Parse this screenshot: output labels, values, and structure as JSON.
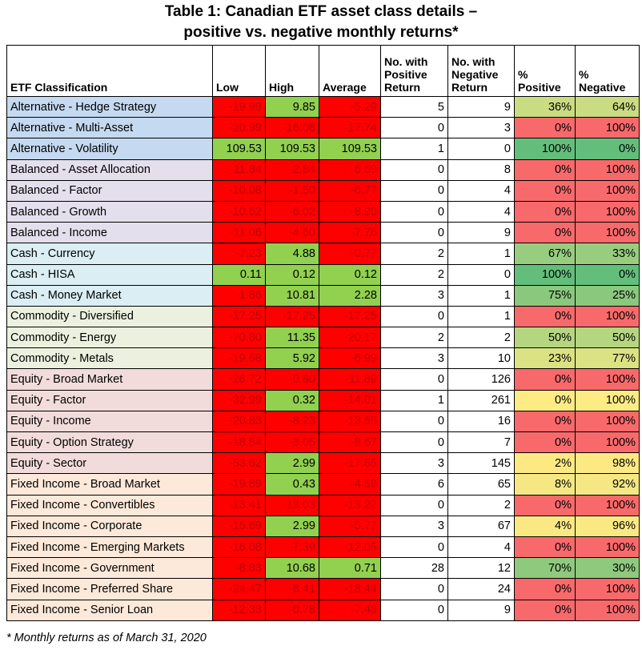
{
  "title_line1": "Table 1: Canadian ETF asset class details –",
  "title_line2": "positive vs. negative monthly returns*",
  "headers": [
    "ETF Classification",
    "Low",
    "High",
    "Average",
    "No. with Positive Return",
    "No. with Negative Return",
    "% Positive",
    "% Negative"
  ],
  "category_colors": {
    "Alternative": "#c5d9f1",
    "Balanced": "#e4dfec",
    "Cash": "#daeef3",
    "Commodity": "#ebf1de",
    "Equity": "#f2dcdb",
    "Fixed Income": "#fde9d9"
  },
  "rows": [
    {
      "name": "Alternative - Hedge Strategy",
      "cat": "Alternative",
      "low": "-19.99",
      "high": "9.85",
      "avg": "-5.29",
      "npos": "5",
      "nneg": "9",
      "ppos": "36%",
      "pneg": "64%",
      "pcolor": "#c9dc81"
    },
    {
      "name": "Alternative - Multi-Asset",
      "cat": "Alternative",
      "low": "-20.99",
      "high": "-16.08",
      "avg": "-17.74",
      "npos": "0",
      "nneg": "3",
      "ppos": "0%",
      "pneg": "100%",
      "pcolor": "#f8696b"
    },
    {
      "name": "Alternative - Volatility",
      "cat": "Alternative",
      "low": "109.53",
      "high": "109.53",
      "avg": "109.53",
      "npos": "1",
      "nneg": "0",
      "ppos": "100%",
      "pneg": "0%",
      "pcolor": "#63be7b"
    },
    {
      "name": "Balanced - Asset Allocation",
      "cat": "Balanced",
      "low": "-11.84",
      "high": "-2.84",
      "avg": "-6.69",
      "npos": "0",
      "nneg": "8",
      "ppos": "0%",
      "pneg": "100%",
      "pcolor": "#f8696b"
    },
    {
      "name": "Balanced - Factor",
      "cat": "Balanced",
      "low": "-10.08",
      "high": "-1.50",
      "avg": "-6.77",
      "npos": "0",
      "nneg": "4",
      "ppos": "0%",
      "pneg": "100%",
      "pcolor": "#f8696b"
    },
    {
      "name": "Balanced - Growth",
      "cat": "Balanced",
      "low": "-10.62",
      "high": "-6.02",
      "avg": "-8.90",
      "npos": "0",
      "nneg": "4",
      "ppos": "0%",
      "pneg": "100%",
      "pcolor": "#f8696b"
    },
    {
      "name": "Balanced - Income",
      "cat": "Balanced",
      "low": "-11.06",
      "high": "-4.60",
      "avg": "-7.76",
      "npos": "0",
      "nneg": "9",
      "ppos": "0%",
      "pneg": "100%",
      "pcolor": "#f8696b"
    },
    {
      "name": "Cash - Currency",
      "cat": "Cash",
      "low": "-7.23",
      "high": "4.88",
      "avg": "-0.77",
      "npos": "2",
      "nneg": "1",
      "ppos": "67%",
      "pneg": "33%",
      "pcolor": "#98cd7f"
    },
    {
      "name": "Cash - HISA",
      "cat": "Cash",
      "low": "0.11",
      "high": "0.12",
      "avg": "0.12",
      "npos": "2",
      "nneg": "0",
      "ppos": "100%",
      "pneg": "0%",
      "pcolor": "#63be7b"
    },
    {
      "name": "Cash - Money Market",
      "cat": "Cash",
      "low": "-1.86",
      "high": "10.81",
      "avg": "2.28",
      "npos": "3",
      "nneg": "1",
      "ppos": "75%",
      "pneg": "25%",
      "pcolor": "#8ac87d"
    },
    {
      "name": "Commodity - Diversified",
      "cat": "Commodity",
      "low": "-17.25",
      "high": "-17.25",
      "avg": "-17.25",
      "npos": "0",
      "nneg": "1",
      "ppos": "0%",
      "pneg": "100%",
      "pcolor": "#f8696b"
    },
    {
      "name": "Commodity - Energy",
      "cat": "Commodity",
      "low": "-70.80",
      "high": "11.35",
      "avg": "-20.17",
      "npos": "2",
      "nneg": "2",
      "ppos": "50%",
      "pneg": "50%",
      "pcolor": "#b5d680"
    },
    {
      "name": "Commodity - Metals",
      "cat": "Commodity",
      "low": "-19.58",
      "high": "5.92",
      "avg": "-6.99",
      "npos": "3",
      "nneg": "10",
      "ppos": "23%",
      "pneg": "77%",
      "pcolor": "#dae283"
    },
    {
      "name": "Equity - Broad Market",
      "cat": "Equity",
      "low": "-26.72",
      "high": "-0.80",
      "avg": "-11.89",
      "npos": "0",
      "nneg": "126",
      "ppos": "0%",
      "pneg": "100%",
      "pcolor": "#f8696b"
    },
    {
      "name": "Equity - Factor",
      "cat": "Equity",
      "low": "-32.99",
      "high": "0.32",
      "avg": "-14.01",
      "npos": "1",
      "nneg": "261",
      "ppos": "0%",
      "pneg": "100%",
      "pcolor": "#ffeb84"
    },
    {
      "name": "Equity - Income",
      "cat": "Equity",
      "low": "-20.83",
      "high": "-8.23",
      "avg": "-13.65",
      "npos": "0",
      "nneg": "16",
      "ppos": "0%",
      "pneg": "100%",
      "pcolor": "#f8696b"
    },
    {
      "name": "Equity - Option Strategy",
      "cat": "Equity",
      "low": "-18.54",
      "high": "-3.05",
      "avg": "-8.67",
      "npos": "0",
      "nneg": "7",
      "ppos": "0%",
      "pneg": "100%",
      "pcolor": "#f8696b"
    },
    {
      "name": "Equity - Sector",
      "cat": "Equity",
      "low": "-53.62",
      "high": "2.99",
      "avg": "-17.85",
      "npos": "3",
      "nneg": "145",
      "ppos": "2%",
      "pneg": "98%",
      "pcolor": "#fde984"
    },
    {
      "name": "Fixed Income - Broad Market",
      "cat": "Fixed Income",
      "low": "-19.89",
      "high": "0.43",
      "avg": "-4.59",
      "npos": "6",
      "nneg": "65",
      "ppos": "8%",
      "pneg": "92%",
      "pcolor": "#f4e784"
    },
    {
      "name": "Fixed Income - Convertibles",
      "cat": "Fixed Income",
      "low": "-13.41",
      "high": "-13.03",
      "avg": "-13.22",
      "npos": "0",
      "nneg": "2",
      "ppos": "0%",
      "pneg": "100%",
      "pcolor": "#f8696b"
    },
    {
      "name": "Fixed Income - Corporate",
      "cat": "Fixed Income",
      "low": "-15.69",
      "high": "2.99",
      "avg": "-5.77",
      "npos": "3",
      "nneg": "67",
      "ppos": "4%",
      "pneg": "96%",
      "pcolor": "#fae983"
    },
    {
      "name": "Fixed Income - Emerging Markets",
      "cat": "Fixed Income",
      "low": "-16.08",
      "high": "-7.39",
      "avg": "-12.05",
      "npos": "0",
      "nneg": "4",
      "ppos": "0%",
      "pneg": "100%",
      "pcolor": "#f8696b"
    },
    {
      "name": "Fixed Income - Government",
      "cat": "Fixed Income",
      "low": "-8.83",
      "high": "10.68",
      "avg": "0.71",
      "npos": "28",
      "nneg": "12",
      "ppos": "70%",
      "pneg": "30%",
      "pcolor": "#8fc97e"
    },
    {
      "name": "Fixed Income - Preferred Share",
      "cat": "Fixed Income",
      "low": "-24.47",
      "high": "-8.41",
      "avg": "-18.44",
      "npos": "0",
      "nneg": "24",
      "ppos": "0%",
      "pneg": "100%",
      "pcolor": "#f8696b"
    },
    {
      "name": "Fixed Income - Senior Loan",
      "cat": "Fixed Income",
      "low": "-12.33",
      "high": "-0.78",
      "avg": "-7.48",
      "npos": "0",
      "nneg": "9",
      "ppos": "0%",
      "pneg": "100%",
      "pcolor": "#f8696b"
    }
  ],
  "footnote": "* Monthly returns as of March 31, 2020"
}
